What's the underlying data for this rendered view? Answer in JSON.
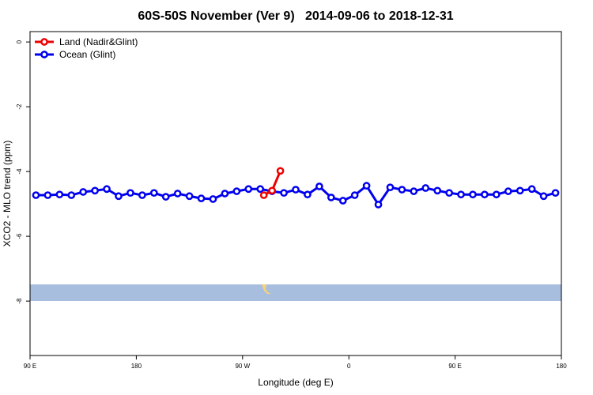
{
  "chart_data": {
    "type": "line",
    "title": "60S-50S November (Ver 9)   2014-09-06 to 2018-12-31",
    "x_label": "Longitude (deg E)",
    "y_label": "XCO2 - MLO trend (ppm)",
    "xlim": [
      90,
      540
    ],
    "ylim": [
      -9.68,
      0.32
    ],
    "xticks": [
      {
        "value": 90,
        "label": "90 E"
      },
      {
        "value": 180,
        "label": "180"
      },
      {
        "value": 270,
        "label": "90 W"
      },
      {
        "value": 360,
        "label": "0"
      },
      {
        "value": 450,
        "label": "90 E"
      },
      {
        "value": 540,
        "label": "180"
      }
    ],
    "yticks": [
      0,
      -2,
      -4,
      -6,
      -8
    ],
    "legend": "top-left",
    "series": [
      {
        "name": "Land (Nadir&Glint)",
        "color": "#ee0000",
        "x": [
          288,
          295,
          302
        ],
        "values": [
          -4.73,
          -4.59,
          -3.98
        ]
      },
      {
        "name": "Ocean (Glint)",
        "color": "#0000ee",
        "x": [
          95,
          105,
          115,
          125,
          135,
          145,
          155,
          165,
          175,
          185,
          195,
          205,
          215,
          225,
          235,
          245,
          255,
          265,
          275,
          285,
          295,
          305,
          315,
          325,
          335,
          345,
          355,
          365,
          375,
          385,
          395,
          405,
          415,
          425,
          435,
          445,
          455,
          465,
          475,
          485,
          495,
          505,
          515,
          525,
          535
        ],
        "values": [
          -4.73,
          -4.73,
          -4.71,
          -4.73,
          -4.63,
          -4.59,
          -4.54,
          -4.76,
          -4.66,
          -4.73,
          -4.66,
          -4.78,
          -4.68,
          -4.76,
          -4.83,
          -4.85,
          -4.68,
          -4.61,
          -4.54,
          -4.54,
          -4.61,
          -4.66,
          -4.56,
          -4.71,
          -4.46,
          -4.8,
          -4.9,
          -4.73,
          -4.44,
          -5.02,
          -4.49,
          -4.56,
          -4.61,
          -4.51,
          -4.59,
          -4.66,
          -4.71,
          -4.71,
          -4.71,
          -4.71,
          -4.61,
          -4.59,
          -4.54,
          -4.76,
          -4.66
        ]
      }
    ]
  }
}
